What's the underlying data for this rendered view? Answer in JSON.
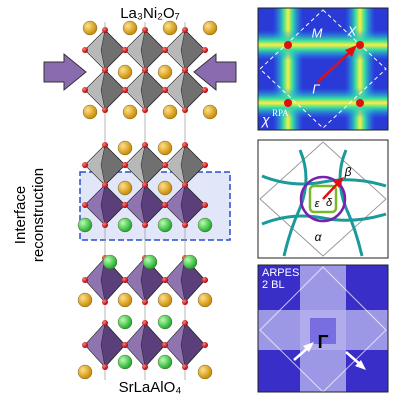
{
  "structure": {
    "title": "La₃Ni₂O₇",
    "side_label": [
      "Interface",
      "reconstruction"
    ],
    "substrate": "SrLaAlO₄"
  },
  "panels": [
    {
      "labels": {
        "m": "M",
        "x": "X",
        "gamma": "Γ",
        "chi": "χ",
        "chi_sup": "RPA"
      }
    },
    {
      "labels": {
        "beta": "β",
        "epsilon": "ε",
        "delta": "δ",
        "alpha": "α"
      }
    },
    {
      "labels": {
        "title": "ARPES",
        "sample": "2 BL",
        "gamma": "Γ"
      }
    }
  ]
}
